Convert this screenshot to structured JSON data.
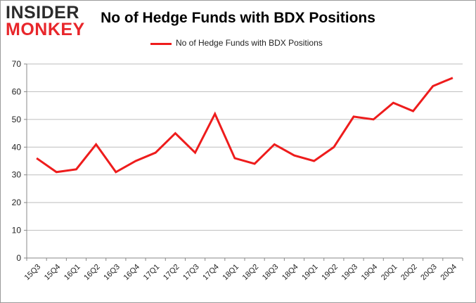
{
  "logo": {
    "line1": "INSIDER",
    "line2": "MONKEY"
  },
  "chart_data": {
    "type": "line",
    "title": "No of Hedge Funds with BDX Positions",
    "xlabel": "",
    "ylabel": "",
    "categories": [
      "15Q3",
      "15Q4",
      "16Q1",
      "16Q2",
      "16Q3",
      "16Q4",
      "17Q1",
      "17Q2",
      "17Q3",
      "17Q4",
      "18Q1",
      "18Q2",
      "18Q3",
      "18Q4",
      "19Q1",
      "19Q2",
      "19Q3",
      "19Q4",
      "20Q1",
      "20Q2",
      "20Q3",
      "20Q4"
    ],
    "series": [
      {
        "name": "No of Hedge Funds with BDX Positions",
        "values": [
          36,
          31,
          32,
          41,
          31,
          35,
          38,
          45,
          38,
          52,
          36,
          34,
          41,
          37,
          35,
          40,
          51,
          50,
          56,
          53,
          62,
          65
        ],
        "color": "#ee1c1c"
      }
    ],
    "ylim": [
      0,
      70
    ],
    "yticks": [
      0,
      10,
      20,
      30,
      40,
      50,
      60,
      70
    ],
    "grid": true,
    "legend_position": "top-center"
  }
}
